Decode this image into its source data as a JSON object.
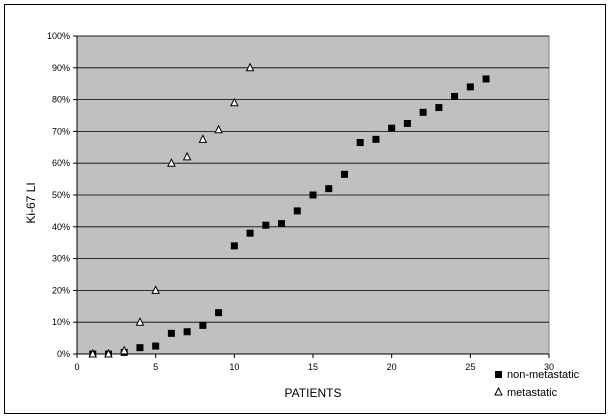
{
  "chart_data": {
    "type": "scatter",
    "xlabel": "PATIENTS",
    "ylabel": "Ki-67 LI",
    "xlim": [
      0,
      30
    ],
    "ylim": [
      0,
      100
    ],
    "x_ticks": [
      "0",
      "5",
      "10",
      "15",
      "20",
      "25",
      "30"
    ],
    "y_ticks": [
      "0%",
      "10%",
      "20%",
      "30%",
      "40%",
      "50%",
      "60%",
      "70%",
      "80%",
      "90%",
      "100%"
    ],
    "grid": "horizontal",
    "plot_background": "#c0c0c0",
    "legend_position": "bottom-right",
    "series": [
      {
        "name": "non-metastatic",
        "marker": "filled-square",
        "color": "#000000",
        "x": [
          1,
          2,
          3,
          4,
          5,
          6,
          7,
          8,
          9,
          10,
          11,
          12,
          13,
          14,
          15,
          16,
          17,
          18,
          19,
          20,
          21,
          22,
          23,
          24,
          25,
          26
        ],
        "y": [
          0,
          0,
          0.5,
          2,
          2.5,
          6.5,
          7,
          9,
          13,
          34,
          38,
          40.5,
          41,
          45,
          50,
          52,
          56.5,
          66.5,
          67.5,
          71,
          72.5,
          76,
          77.5,
          81,
          84,
          86.5
        ]
      },
      {
        "name": "metastatic",
        "marker": "open-triangle",
        "color": "#000000",
        "x": [
          1,
          2,
          3,
          4,
          5,
          6,
          7,
          8,
          9,
          10,
          11
        ],
        "y": [
          0,
          0,
          1,
          10,
          20,
          60,
          62,
          67.5,
          70.5,
          79,
          90
        ]
      }
    ]
  }
}
